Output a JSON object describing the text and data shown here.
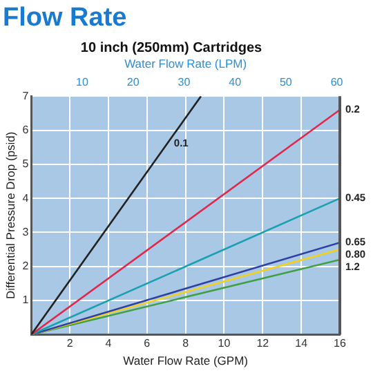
{
  "chart_data": {
    "type": "line",
    "title": "Flow Rate",
    "subtitle": "10 inch (250mm) Cartridges",
    "xlabel": "Water Flow Rate (GPM)",
    "ylabel": "Differential Pressure Drop (psid)",
    "x2label": "Water Flow Rate (LPM)",
    "xlim": [
      0,
      16
    ],
    "xticks": [
      {
        "value": 0,
        "label": null
      },
      2,
      4,
      6,
      8,
      10,
      12,
      14,
      16
    ],
    "ylim": [
      0,
      7
    ],
    "yticks": [
      {
        "value": 0,
        "label": null
      },
      1,
      2,
      3,
      4,
      5,
      6,
      7
    ],
    "x2lim": [
      0,
      60.6
    ],
    "x2ticks": [
      10,
      20,
      30,
      40,
      50,
      60
    ],
    "grid": true,
    "legend": false,
    "marker": "none",
    "line_style": "solid",
    "series": [
      {
        "name": "0.1",
        "color": "#222222",
        "x": [
          0,
          8.8
        ],
        "values": [
          0,
          7
        ]
      },
      {
        "name": "0.2",
        "color": "#e0284a",
        "x": [
          0,
          16
        ],
        "values": [
          0,
          6.6
        ]
      },
      {
        "name": "0.45",
        "color": "#1aa0b0",
        "x": [
          0,
          16
        ],
        "values": [
          0,
          4.0
        ]
      },
      {
        "name": "0.65",
        "color": "#3040a0",
        "x": [
          0,
          16
        ],
        "values": [
          0,
          2.7
        ]
      },
      {
        "name": "0.80",
        "color": "#f0d020",
        "x": [
          0,
          16
        ],
        "values": [
          0,
          2.5
        ]
      },
      {
        "name": "1.2",
        "color": "#40a040",
        "x": [
          0,
          16
        ],
        "values": [
          0,
          2.2
        ]
      }
    ]
  }
}
